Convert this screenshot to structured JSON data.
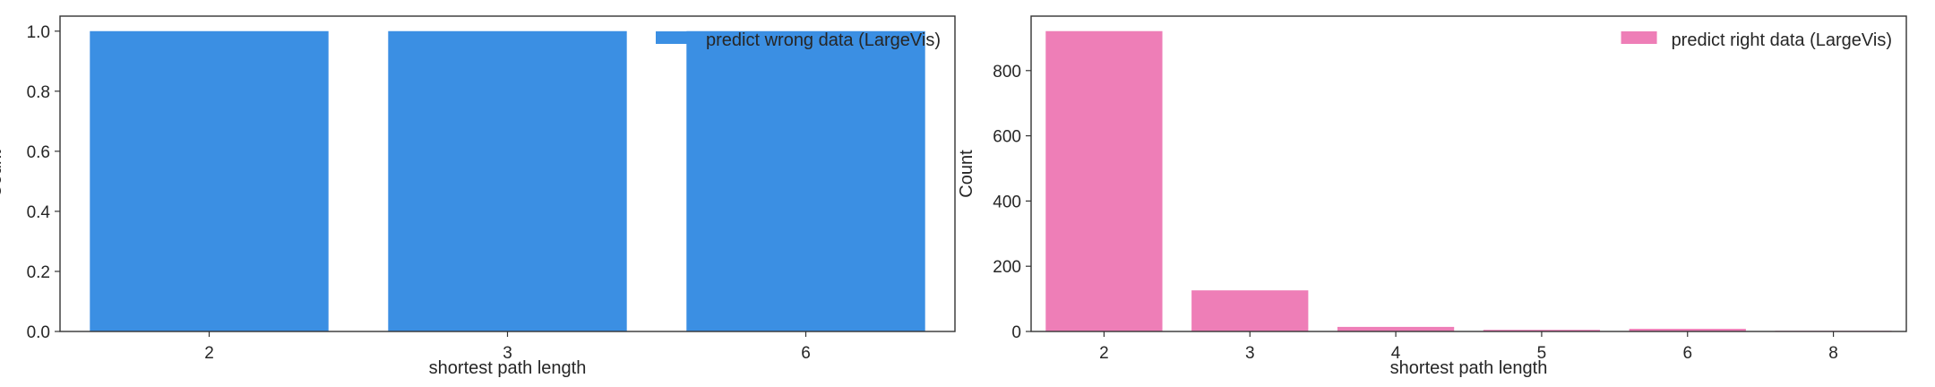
{
  "chart_data": [
    {
      "type": "bar",
      "categories": [
        "2",
        "3",
        "6"
      ],
      "values": [
        1.0,
        1.0,
        1.0
      ],
      "xlabel": "shortest path length",
      "ylabel": "Count",
      "ylim": [
        0,
        1.05
      ],
      "yticks": [
        "0.0",
        "0.2",
        "0.4",
        "0.6",
        "0.8",
        "1.0"
      ],
      "ytick_values": [
        0,
        0.2,
        0.4,
        0.6,
        0.8,
        1.0
      ],
      "color": "#3b8fe3",
      "legend": {
        "label": "predict wrong data (LargeVis)",
        "placement": "top-right"
      },
      "grid": false
    },
    {
      "type": "bar",
      "categories": [
        "2",
        "3",
        "4",
        "5",
        "6",
        "8"
      ],
      "values": [
        921,
        126,
        14,
        5,
        8,
        2
      ],
      "xlabel": "shortest path length",
      "ylabel": "Count",
      "ylim": [
        0,
        967
      ],
      "yticks": [
        "0",
        "200",
        "400",
        "600",
        "800"
      ],
      "ytick_values": [
        0,
        200,
        400,
        600,
        800
      ],
      "color": "#ee7eb7",
      "legend": {
        "label": "predict right data (LargeVis)",
        "placement": "top-right"
      },
      "grid": false
    }
  ]
}
